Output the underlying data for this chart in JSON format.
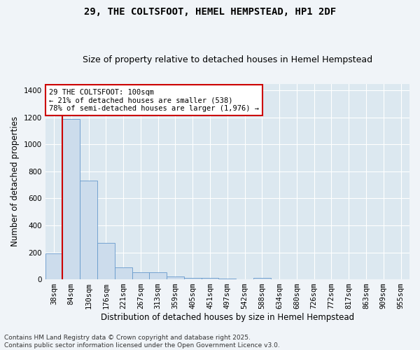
{
  "title": "29, THE COLTSFOOT, HEMEL HEMPSTEAD, HP1 2DF",
  "subtitle": "Size of property relative to detached houses in Hemel Hempstead",
  "xlabel": "Distribution of detached houses by size in Hemel Hempstead",
  "ylabel": "Number of detached properties",
  "bar_color": "#ccdcec",
  "bar_edge_color": "#6699cc",
  "plot_bg_color": "#dce8f0",
  "fig_bg_color": "#f0f4f8",
  "grid_color": "#ffffff",
  "bin_labels": [
    "38sqm",
    "84sqm",
    "130sqm",
    "176sqm",
    "221sqm",
    "267sqm",
    "313sqm",
    "359sqm",
    "405sqm",
    "451sqm",
    "497sqm",
    "542sqm",
    "588sqm",
    "634sqm",
    "680sqm",
    "726sqm",
    "772sqm",
    "817sqm",
    "863sqm",
    "909sqm",
    "955sqm"
  ],
  "bar_values": [
    190,
    1190,
    730,
    270,
    90,
    50,
    50,
    22,
    10,
    10,
    5,
    0,
    10,
    0,
    0,
    0,
    0,
    0,
    0,
    0,
    0
  ],
  "ylim": [
    0,
    1450
  ],
  "yticks": [
    0,
    200,
    400,
    600,
    800,
    1000,
    1200,
    1400
  ],
  "annotation_line1": "29 THE COLTSFOOT: 100sqm",
  "annotation_line2": "← 21% of detached houses are smaller (538)",
  "annotation_line3": "78% of semi-detached houses are larger (1,976) →",
  "vline_color": "#cc0000",
  "annotation_box_color": "#cc0000",
  "footer": "Contains HM Land Registry data © Crown copyright and database right 2025.\nContains public sector information licensed under the Open Government Licence v3.0.",
  "title_fontsize": 10,
  "subtitle_fontsize": 9,
  "xlabel_fontsize": 8.5,
  "ylabel_fontsize": 8.5,
  "tick_fontsize": 7.5,
  "annotation_fontsize": 7.5,
  "footer_fontsize": 6.5
}
